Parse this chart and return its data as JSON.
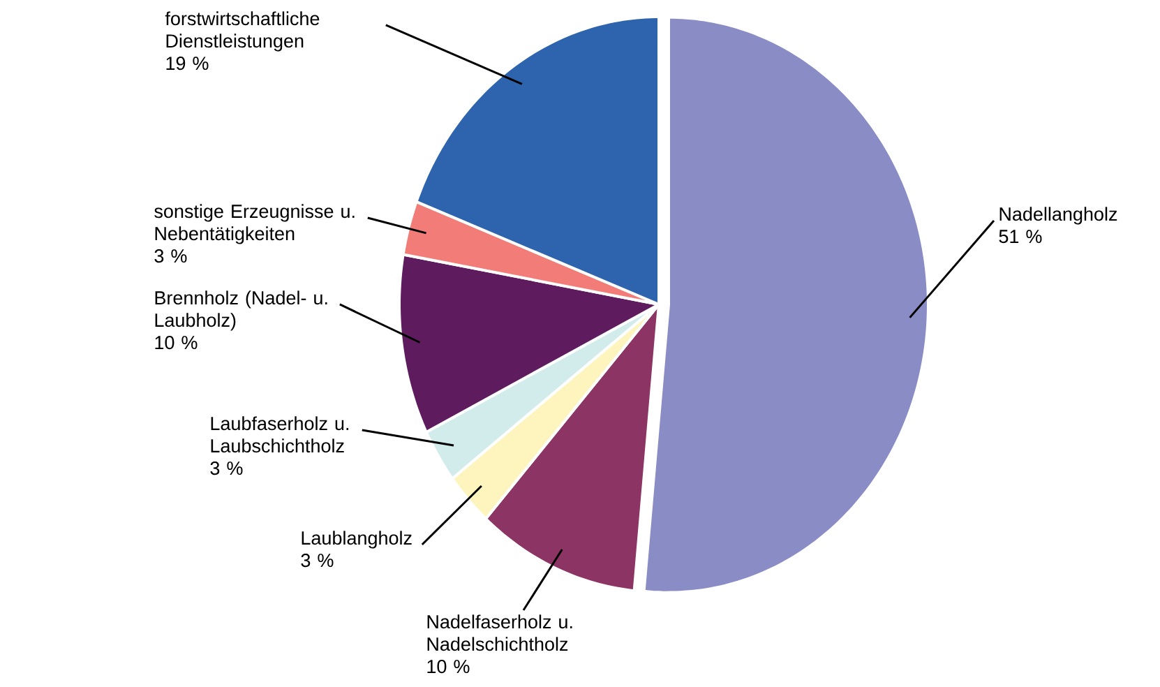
{
  "chart_data": {
    "type": "pie",
    "categories": [
      "Nadellangholz",
      "Nadelfaserholz u. Nadelschichtholz",
      "Laublangholz",
      "Laubfaserholz u. Laubschichtholz",
      "Brennholz (Nadel- u. Laubholz)",
      "sonstige Erzeugnisse u. Nebentätigkeiten",
      "forstwirtschaftliche Dienstleistungen"
    ],
    "values": [
      51,
      10,
      3,
      3,
      10,
      3,
      19
    ],
    "colors": [
      "#8a8cc6",
      "#8c3464",
      "#fdf5bd",
      "#d2ecec",
      "#5e1b5e",
      "#f27c78",
      "#2e64ae"
    ],
    "value_labels": [
      "51 %",
      "10 %",
      "3 %",
      "3 %",
      "10 %",
      "3 %",
      "19 %"
    ]
  }
}
